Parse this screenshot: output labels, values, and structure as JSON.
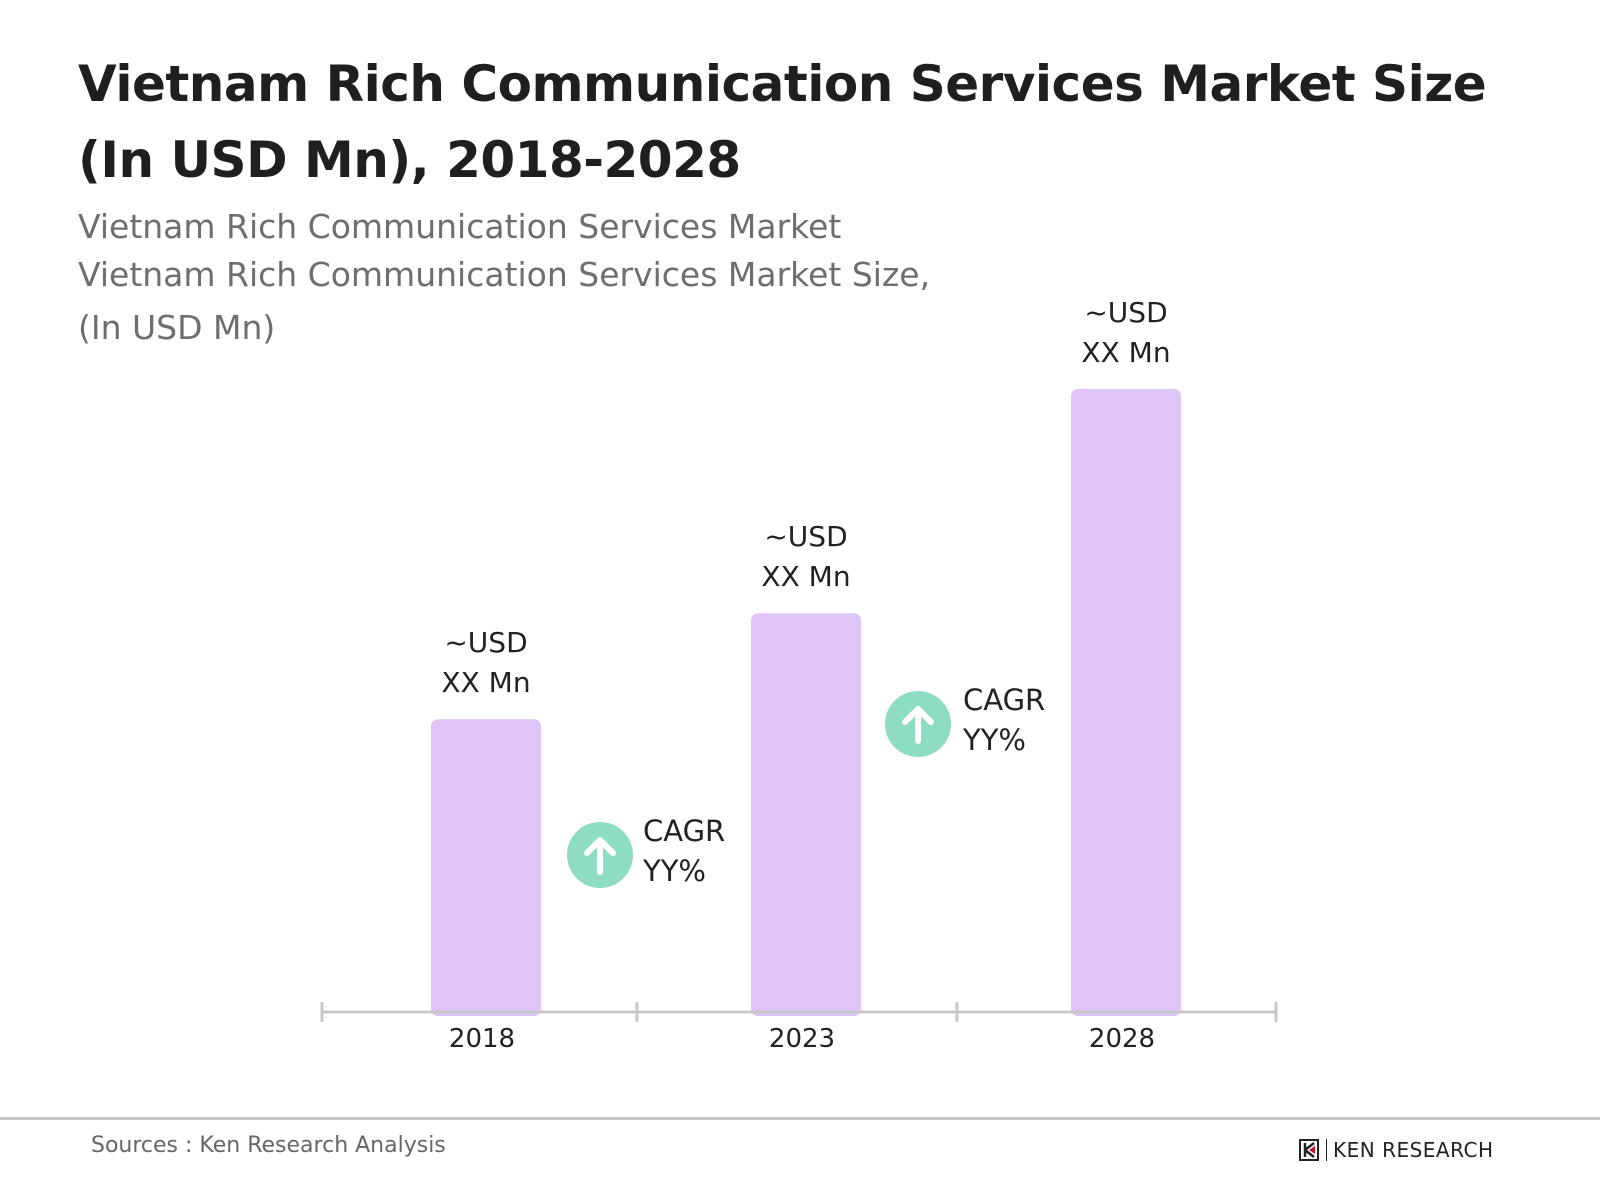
{
  "chart_data": {
    "type": "bar",
    "title": "Vietnam Rich Communication Services Market Size (In USD Mn), 2018-2028",
    "subtitle": [
      "Vietnam Rich Communication Services Market",
      "Vietnam Rich Communication Services Market Size,",
      "(In USD Mn)"
    ],
    "categories": [
      "2018",
      "2023",
      "2028"
    ],
    "relative_values": [
      47,
      64,
      100
    ],
    "data_labels": [
      [
        "~USD",
        "XX Mn"
      ],
      [
        "~USD",
        "XX Mn"
      ],
      [
        "~USD",
        "XX Mn"
      ]
    ],
    "annotations": [
      {
        "between": [
          "2018",
          "2023"
        ],
        "lines": [
          "CAGR",
          "YY%"
        ],
        "icon": "arrow-up-circle-icon"
      },
      {
        "between": [
          "2023",
          "2028"
        ],
        "lines": [
          "CAGR",
          "YY%"
        ],
        "icon": "arrow-up-circle-icon"
      }
    ],
    "grid": false,
    "colors": {
      "bar": "#dfc4f7",
      "cagr_circle": "#8ddcc3",
      "axis": "#c8c8c8"
    }
  },
  "footer": {
    "source": "Sources : Ken Research Analysis",
    "logo": "KEN RESEARCH"
  }
}
